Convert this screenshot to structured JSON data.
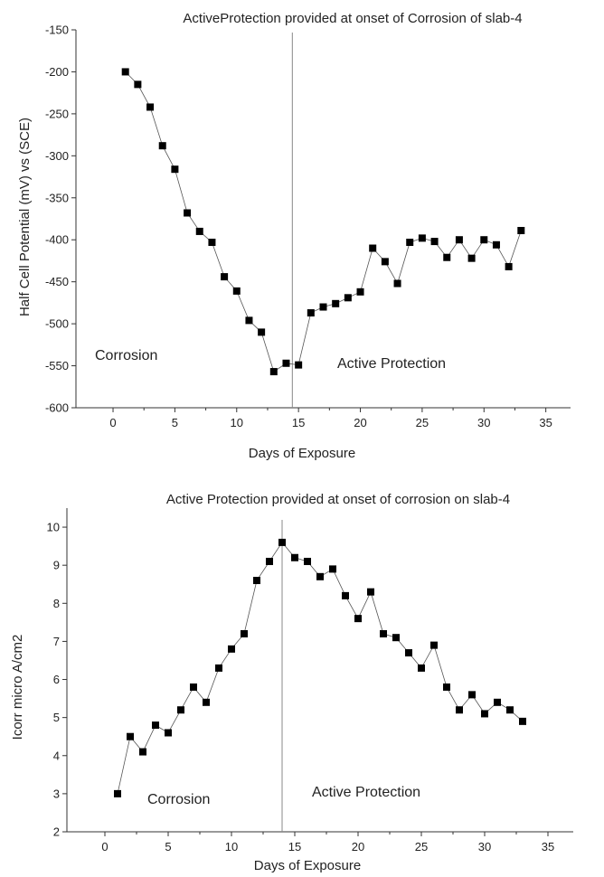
{
  "chart_data": [
    {
      "type": "scatter",
      "title": "ActiveProtection provided at onset of Corrosion of slab-4",
      "xlabel": "Days of Exposure",
      "ylabel": "Half Cell Potential (mV) vs (SCE)",
      "xlim": [
        -3,
        37
      ],
      "ylim": [
        -600,
        -150
      ],
      "xticks": [
        0,
        5,
        10,
        15,
        20,
        25,
        30,
        35
      ],
      "yticks": [
        -150,
        -200,
        -250,
        -300,
        -350,
        -400,
        -450,
        -500,
        -550,
        -600
      ],
      "grid": false,
      "divider_x": 14.5,
      "annotations": [
        "Corrosion",
        "Active Protection"
      ],
      "series": [
        {
          "x": [
            1,
            2,
            3,
            4,
            5,
            6,
            7,
            8,
            9,
            10,
            11,
            12,
            13,
            14,
            15,
            16,
            17,
            18,
            19,
            20,
            21,
            22,
            23,
            24,
            25,
            26,
            27,
            28,
            29,
            30,
            31,
            32,
            33
          ],
          "values": [
            -200,
            -215,
            -242,
            -288,
            -316,
            -368,
            -390,
            -403,
            -444,
            -461,
            -496,
            -510,
            -557,
            -547,
            -549,
            -487,
            -480,
            -476,
            -469,
            -462,
            -410,
            -426,
            -452,
            -403,
            -398,
            -402,
            -421,
            -400,
            -422,
            -400,
            -406,
            -432,
            -389
          ]
        }
      ]
    },
    {
      "type": "scatter",
      "title": "Active Protection provided at onset of corrosion on slab-4",
      "xlabel": "Days of Exposure",
      "ylabel": "Icorr micro A/cm2",
      "xlim": [
        -3,
        37
      ],
      "ylim": [
        2,
        10.5
      ],
      "xticks": [
        0,
        5,
        10,
        15,
        20,
        25,
        30,
        35
      ],
      "yticks": [
        2,
        3,
        4,
        5,
        6,
        7,
        8,
        9,
        10
      ],
      "grid": false,
      "divider_x": 14,
      "annotations": [
        "Corrosion",
        "Active Protection"
      ],
      "series": [
        {
          "x": [
            1,
            2,
            3,
            4,
            5,
            6,
            7,
            8,
            9,
            10,
            11,
            12,
            13,
            14,
            15,
            16,
            17,
            18,
            19,
            20,
            21,
            22,
            23,
            24,
            25,
            26,
            27,
            28,
            29,
            30,
            31,
            32,
            33
          ],
          "values": [
            3.0,
            4.5,
            4.1,
            4.8,
            4.6,
            5.2,
            5.8,
            5.4,
            6.3,
            6.8,
            7.2,
            8.6,
            9.1,
            9.6,
            9.2,
            9.1,
            8.7,
            8.9,
            8.2,
            7.6,
            8.3,
            7.2,
            7.1,
            6.7,
            6.3,
            6.9,
            5.8,
            5.2,
            5.6,
            5.1,
            5.4,
            5.2,
            4.9
          ]
        }
      ]
    }
  ]
}
